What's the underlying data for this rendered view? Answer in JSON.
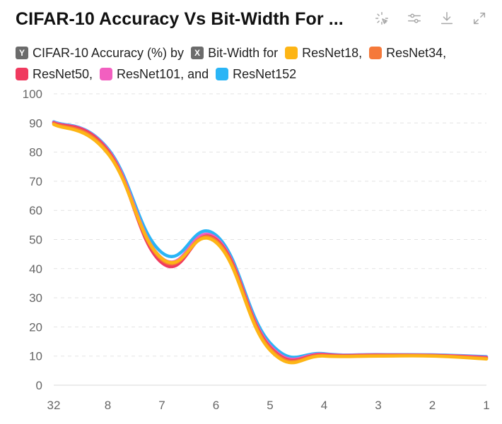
{
  "title": "CIFAR-10 Accuracy Vs Bit-Width For ...",
  "toolbar": {
    "icons": [
      "sparkle-cursor-icon",
      "sliders-icon",
      "download-icon",
      "expand-icon"
    ]
  },
  "legend": {
    "y_badge": "Y",
    "y_text": "CIFAR-10 Accuracy (%) by",
    "x_badge": "X",
    "x_text": "Bit-Width for",
    "series_labels": [
      "ResNet18,",
      "ResNet34,",
      "ResNet50,",
      "ResNet101, and",
      "ResNet152"
    ]
  },
  "chart_data": {
    "type": "line",
    "title": "CIFAR-10 Accuracy Vs Bit-Width For ...",
    "xlabel": "Bit-Width",
    "ylabel": "CIFAR-10 Accuracy (%)",
    "x": [
      "32",
      "8",
      "7",
      "6",
      "5",
      "4",
      "3",
      "2",
      "1"
    ],
    "ylim": [
      0,
      100
    ],
    "yticks": [
      "0",
      "10",
      "20",
      "30",
      "40",
      "50",
      "60",
      "70",
      "80",
      "90",
      "100"
    ],
    "grid": true,
    "legend_position": "top",
    "series": [
      {
        "name": "ResNet18",
        "color": "#fdb515",
        "values": [
          89.5,
          79.5,
          43.5,
          49.0,
          12.0,
          10.0,
          10.0,
          10.0,
          9.0
        ]
      },
      {
        "name": "ResNet34",
        "color": "#f5793a",
        "values": [
          89.8,
          80.0,
          43.0,
          49.6,
          12.6,
          10.2,
          10.2,
          10.1,
          9.2
        ]
      },
      {
        "name": "ResNet50",
        "color": "#f03a5f",
        "values": [
          90.0,
          80.5,
          42.0,
          50.0,
          13.0,
          10.4,
          10.3,
          10.2,
          9.4
        ]
      },
      {
        "name": "ResNet101",
        "color": "#f25fc0",
        "values": [
          90.2,
          80.8,
          43.6,
          50.5,
          13.5,
          10.6,
          10.4,
          10.3,
          9.6
        ]
      },
      {
        "name": "ResNet152",
        "color": "#2ab5f6",
        "values": [
          90.4,
          81.2,
          45.5,
          51.5,
          14.5,
          10.8,
          10.5,
          10.4,
          9.8
        ]
      }
    ]
  }
}
